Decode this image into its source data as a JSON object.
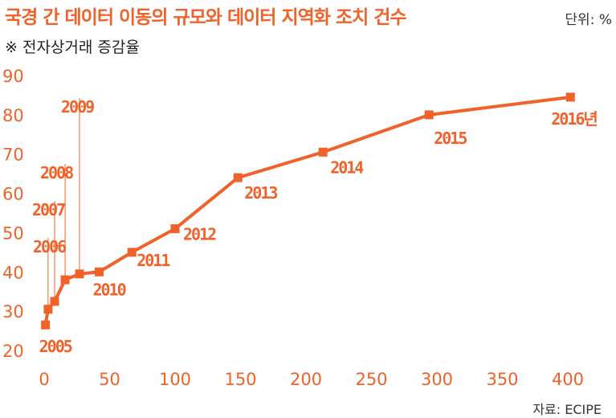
{
  "header": {
    "title": "국경 간 데이터 이동의 규모와 데이터 지역화 조치 건수",
    "unit": "단위: %",
    "subtitle": "※ 전자상거래 증감율"
  },
  "footer": {
    "source": "자료: ECIPE"
  },
  "colors": {
    "accent": "#f0622a"
  },
  "chart_data": {
    "type": "line",
    "title": "국경 간 데이터 이동의 규모와 데이터 지역화 조치 건수",
    "subtitle": "※ 전자상거래 증감율",
    "xlabel": "",
    "ylabel": "",
    "xlim": [
      0,
      400
    ],
    "ylim": [
      20,
      90
    ],
    "x_ticks": [
      0,
      50,
      100,
      150,
      200,
      250,
      300,
      350,
      400
    ],
    "y_ticks": [
      20,
      30,
      40,
      50,
      60,
      70,
      80,
      90
    ],
    "grid": false,
    "legend": "none",
    "series": [
      {
        "points": [
          {
            "x": 1,
            "y": 26.5,
            "label": "2005"
          },
          {
            "x": 3,
            "y": 30.5,
            "label": "2006"
          },
          {
            "x": 8,
            "y": 32.5,
            "label": "2007"
          },
          {
            "x": 16,
            "y": 38,
            "label": "2008"
          },
          {
            "x": 27,
            "y": 39.5,
            "label": "2009"
          },
          {
            "x": 42,
            "y": 40,
            "label": "2010"
          },
          {
            "x": 67,
            "y": 45,
            "label": "2011"
          },
          {
            "x": 100,
            "y": 51,
            "label": "2012"
          },
          {
            "x": 148,
            "y": 64,
            "label": "2013"
          },
          {
            "x": 213,
            "y": 70.5,
            "label": "2014"
          },
          {
            "x": 294,
            "y": 80,
            "label": "2015"
          },
          {
            "x": 402,
            "y": 84.5,
            "label": "2016년"
          }
        ]
      }
    ]
  }
}
